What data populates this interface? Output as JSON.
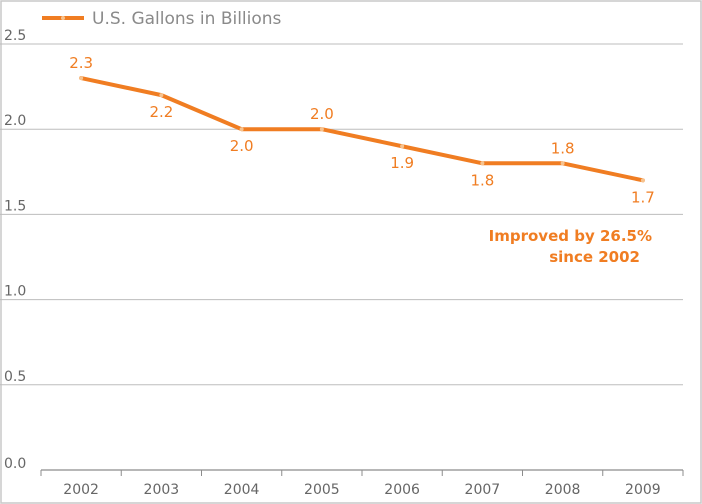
{
  "chart_data": {
    "type": "line",
    "categories": [
      "2002",
      "2003",
      "2004",
      "2005",
      "2006",
      "2007",
      "2008",
      "2009"
    ],
    "series": [
      {
        "name": "U.S. Gallons in Billions",
        "values": [
          2.3,
          2.2,
          2.0,
          2.0,
          1.9,
          1.8,
          1.8,
          1.7
        ],
        "labels": [
          "2.3",
          "2.2",
          "2.0",
          "2.0",
          "1.9",
          "1.8",
          "1.8",
          "1.7"
        ]
      }
    ],
    "ylim": [
      0,
      2.5
    ],
    "yticks": [
      "0.0",
      "0.5",
      "1.0",
      "1.5",
      "2.0",
      "2.5"
    ],
    "title": "",
    "xlabel": "",
    "ylabel": "",
    "grid": true,
    "legend": "top-left",
    "annotation": [
      "Improved by 26.5%",
      "since 2002"
    ],
    "colors": {
      "series": "#f07d22",
      "grid": "#bdbdbd",
      "axis": "#8c8c8c",
      "tick_text": "#666666",
      "legend_text": "#8a8a8a"
    }
  }
}
